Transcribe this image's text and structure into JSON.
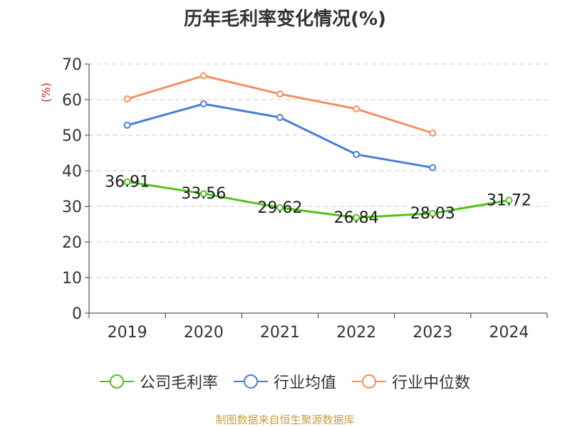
{
  "chart_data": {
    "type": "line",
    "title": "历年毛利率变化情况(%)",
    "ylabel": "(%)",
    "xlabel": "",
    "categories": [
      "2019",
      "2020",
      "2021",
      "2022",
      "2023",
      "2024"
    ],
    "ylim": [
      0,
      70
    ],
    "yticks": [
      "0",
      "10",
      "20",
      "30",
      "40",
      "50",
      "60",
      "70"
    ],
    "grid": true,
    "legend_position": "bottom",
    "series": [
      {
        "name": "公司毛利率",
        "color": "#52c41a",
        "values": [
          36.91,
          33.56,
          29.62,
          26.84,
          28.03,
          31.72
        ],
        "labels": [
          "36.91",
          "33.56",
          "29.62",
          "26.84",
          "28.03",
          "31.72"
        ]
      },
      {
        "name": "行业均值",
        "color": "#4a7fd8",
        "values": [
          52.8,
          58.8,
          55.0,
          44.6,
          40.9,
          null
        ]
      },
      {
        "name": "行业中位数",
        "color": "#f39060",
        "values": [
          60.2,
          66.7,
          61.6,
          57.4,
          50.6,
          null
        ]
      }
    ]
  },
  "footer": {
    "source": "制图数据来自恒生聚源数据库"
  }
}
